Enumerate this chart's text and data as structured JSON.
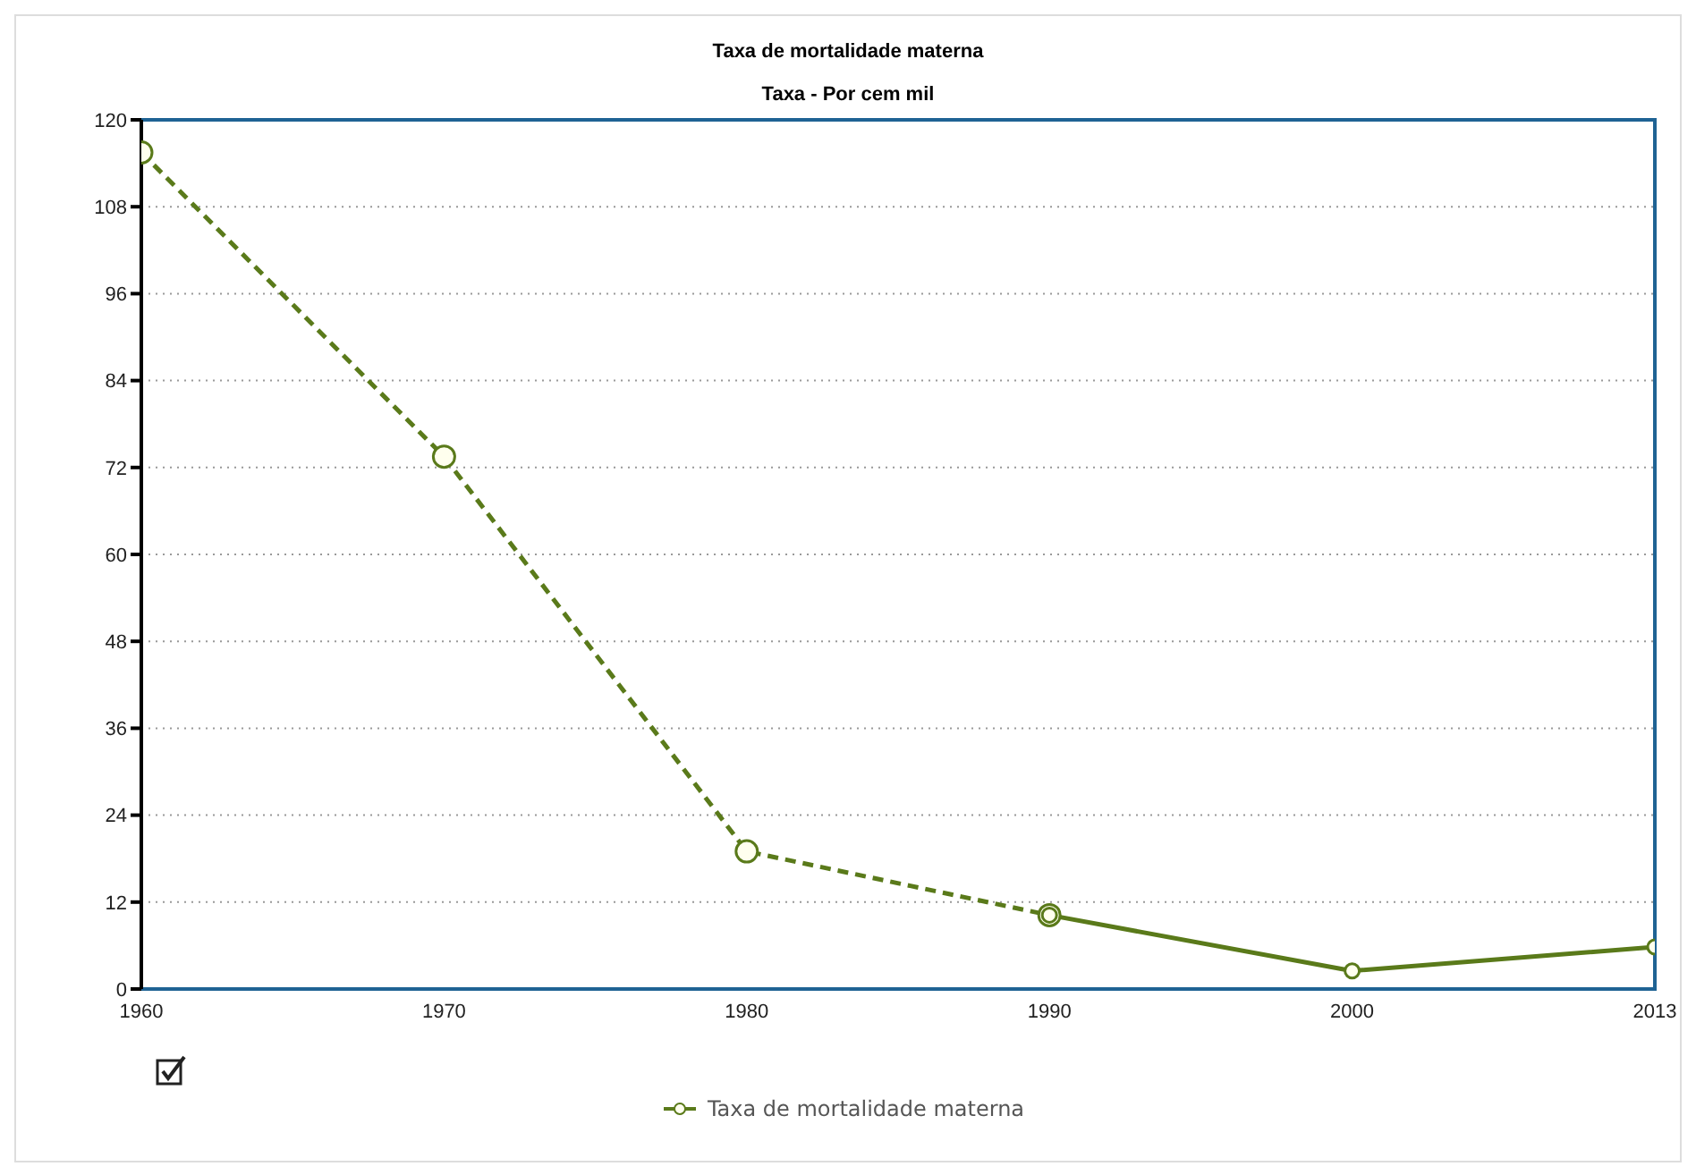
{
  "chart_data": {
    "type": "line",
    "title": "Taxa de mortalidade materna",
    "subtitle": "Taxa - Por cem mil",
    "categories": [
      "1960",
      "1970",
      "1980",
      "1990",
      "2000",
      "2013"
    ],
    "series": [
      {
        "color": "#5a7a1a",
        "values": [
          115.5,
          73.5,
          19,
          10.2,
          null,
          null
        ],
        "line_style": "dashed"
      },
      {
        "name": "Taxa de mortalidade materna",
        "color": "#5a7a1a",
        "values": [
          null,
          null,
          null,
          10.2,
          2.5,
          5.8
        ],
        "line_style": "solid"
      }
    ],
    "ylim": [
      0,
      120
    ],
    "yticks": [
      0,
      12,
      24,
      36,
      48,
      60,
      72,
      84,
      96,
      108,
      120
    ],
    "grid": "y",
    "legend": "bottom",
    "marker": "circle"
  }
}
